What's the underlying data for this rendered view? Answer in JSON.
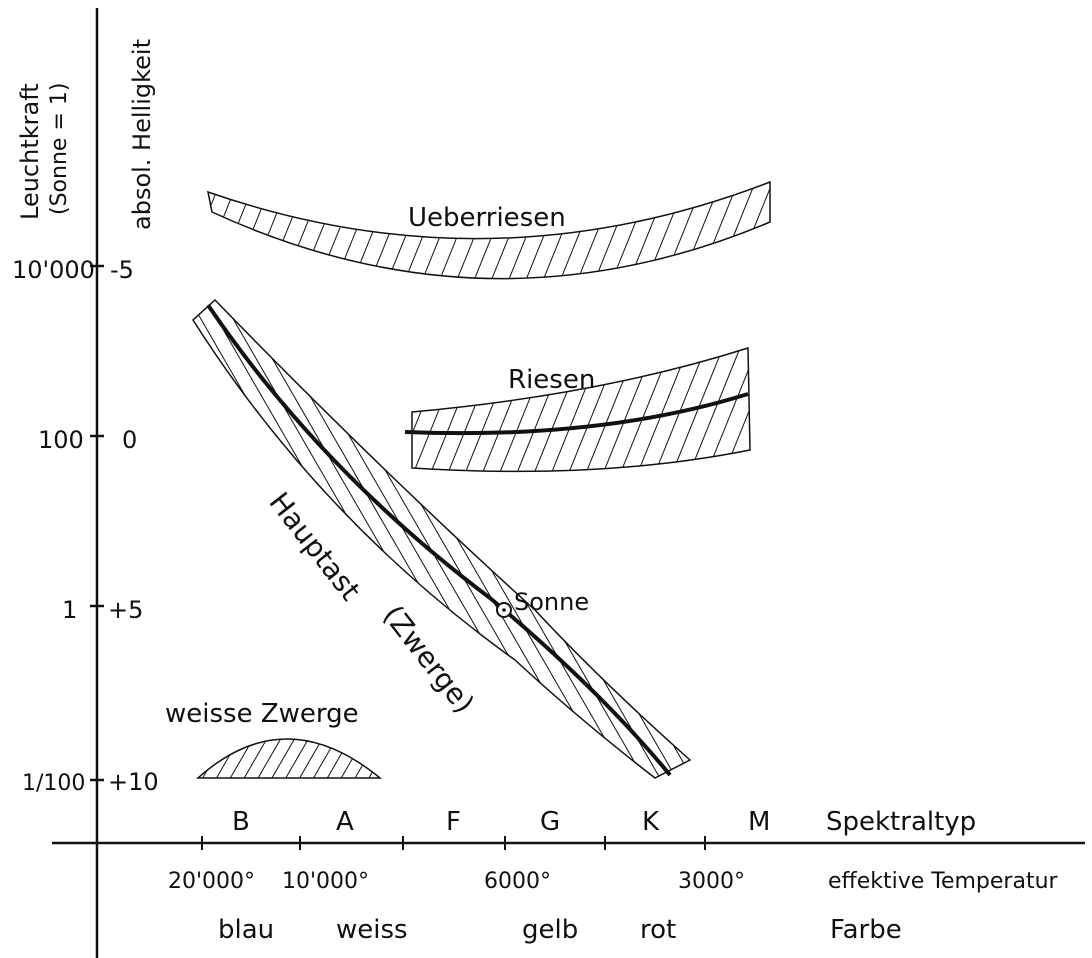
{
  "axes": {
    "y_title_luminosity": "Leuchtkraft",
    "y_title_luminosity_unit": "(Sonne = 1)",
    "y_title_magnitude": "absol. Helligkeit",
    "luminosity_ticks": [
      "10'000",
      "100",
      "1",
      "1/100"
    ],
    "magnitude_ticks": [
      "-5",
      "0",
      "+5",
      "+10"
    ],
    "spectral_types": [
      "B",
      "A",
      "F",
      "G",
      "K",
      "M"
    ],
    "spectral_label": "Spektraltyp",
    "temperatures": [
      "20'000°",
      "10'000°",
      "6000°",
      "3000°"
    ],
    "temperature_label": "effektive Temperatur",
    "colors": [
      "blau",
      "weiss",
      "gelb",
      "rot"
    ],
    "color_label": "Farbe"
  },
  "regions": {
    "supergiants": "Ueberriesen",
    "giants": "Riesen",
    "main_sequence": "Hauptast",
    "dwarfs": "(Zwerge)",
    "white_dwarfs": "weisse Zwerge",
    "sun": "Sonne"
  },
  "colors": {
    "ink": "#111111",
    "paper": "#ffffff"
  }
}
